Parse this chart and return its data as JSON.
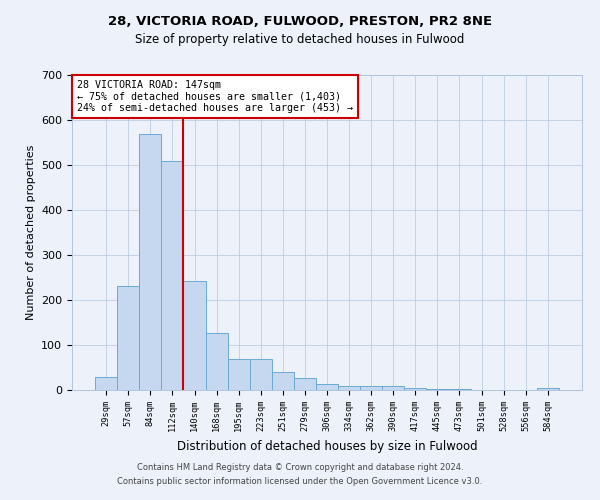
{
  "title1": "28, VICTORIA ROAD, FULWOOD, PRESTON, PR2 8NE",
  "title2": "Size of property relative to detached houses in Fulwood",
  "xlabel": "Distribution of detached houses by size in Fulwood",
  "ylabel": "Number of detached properties",
  "bar_labels": [
    "29sqm",
    "57sqm",
    "84sqm",
    "112sqm",
    "140sqm",
    "168sqm",
    "195sqm",
    "223sqm",
    "251sqm",
    "279sqm",
    "306sqm",
    "334sqm",
    "362sqm",
    "390sqm",
    "417sqm",
    "445sqm",
    "473sqm",
    "501sqm",
    "528sqm",
    "556sqm",
    "584sqm"
  ],
  "bar_values": [
    28,
    232,
    570,
    510,
    242,
    127,
    68,
    68,
    40,
    27,
    13,
    10,
    8,
    8,
    5,
    3,
    2,
    1,
    1,
    0,
    5
  ],
  "bar_color": "#c5d8f0",
  "bar_edgecolor": "#6aaad4",
  "property_line_x": 3.5,
  "annotation_line1": "28 VICTORIA ROAD: 147sqm",
  "annotation_line2": "← 75% of detached houses are smaller (1,403)",
  "annotation_line3": "24% of semi-detached houses are larger (453) →",
  "annotation_box_color": "#ffffff",
  "annotation_box_edgecolor": "#cc0000",
  "vline_color": "#cc0000",
  "ylim": [
    0,
    700
  ],
  "yticks": [
    0,
    100,
    200,
    300,
    400,
    500,
    600,
    700
  ],
  "footer1": "Contains HM Land Registry data © Crown copyright and database right 2024.",
  "footer2": "Contains public sector information licensed under the Open Government Licence v3.0.",
  "bg_color": "#edf2fa",
  "plot_bg_color": "#edf2fa"
}
